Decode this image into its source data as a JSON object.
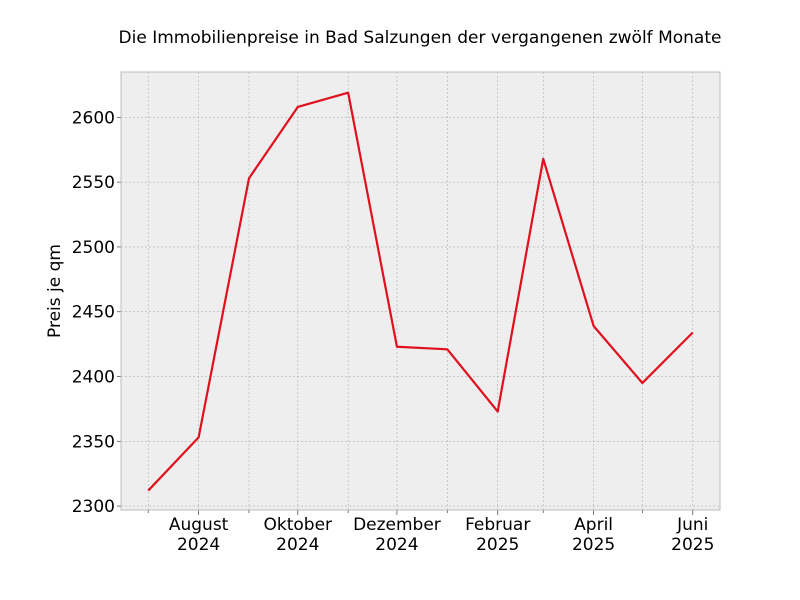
{
  "chart_data": {
    "type": "line",
    "title": "Die Immobilienpreise in Bad Salzungen der vergangenen zwölf Monate",
    "xlabel": "",
    "ylabel": "Preis je qm",
    "x": [
      "2024-07",
      "2024-08",
      "2024-09",
      "2024-10",
      "2024-11",
      "2024-12",
      "2025-01",
      "2025-02",
      "2025-03",
      "2025-04",
      "2025-05",
      "2025-06"
    ],
    "series": [
      {
        "values": [
          2312,
          2353,
          2553,
          2608,
          2619,
          2423,
          2421,
          2373,
          2568,
          2439,
          2395,
          2434
        ]
      }
    ],
    "ylim": [
      2297,
      2635
    ],
    "yticks": [
      2300,
      2350,
      2400,
      2450,
      2500,
      2550,
      2600
    ],
    "xticks": [
      {
        "x": "2024-08",
        "label_month": "August",
        "label_year": "2024"
      },
      {
        "x": "2024-10",
        "label_month": "Oktober",
        "label_year": "2024"
      },
      {
        "x": "2024-12",
        "label_month": "Dezember",
        "label_year": "2024"
      },
      {
        "x": "2025-02",
        "label_month": "Februar",
        "label_year": "2025"
      },
      {
        "x": "2025-04",
        "label_month": "April",
        "label_year": "2025"
      },
      {
        "x": "2025-06",
        "label_month": "Juni",
        "label_year": "2025"
      }
    ],
    "minor_xticks": [
      "2024-07",
      "2024-09",
      "2024-11",
      "2025-01",
      "2025-03",
      "2025-05"
    ],
    "grid": true,
    "line_color": "#e0101e",
    "plot_background": "#eeeeee",
    "grid_color": "#b0b0b0"
  }
}
